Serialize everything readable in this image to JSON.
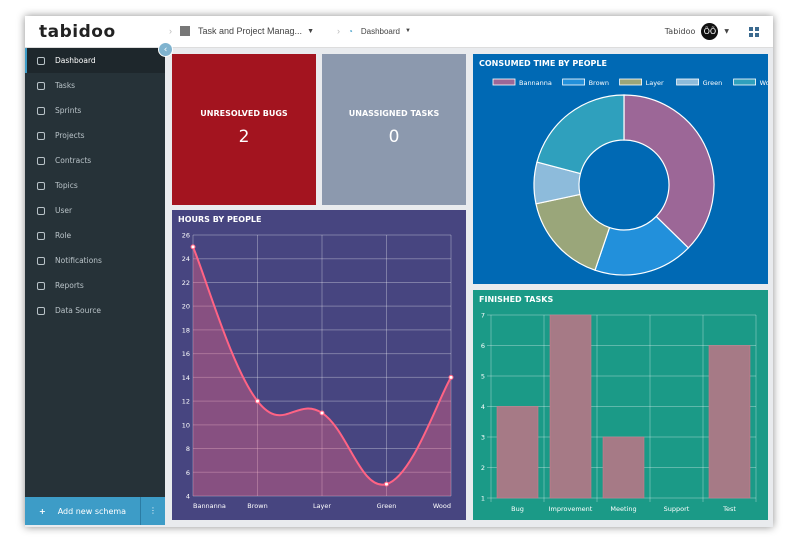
{
  "header": {
    "logo": "tabidoo",
    "app": "Task and Project Manag...",
    "page": "Dashboard",
    "user": "Tabidoo",
    "avatar": "ÕÕ"
  },
  "sidebar": {
    "items": [
      {
        "label": "Dashboard",
        "icon": "gauge-icon",
        "active": true
      },
      {
        "label": "Tasks",
        "icon": "file-icon"
      },
      {
        "label": "Sprints",
        "icon": "sprint-icon"
      },
      {
        "label": "Projects",
        "icon": "projects-icon"
      },
      {
        "label": "Contracts",
        "icon": "table-icon"
      },
      {
        "label": "Topics",
        "icon": "list-icon"
      },
      {
        "label": "User",
        "icon": "user-icon"
      },
      {
        "label": "Role",
        "icon": "users-icon"
      },
      {
        "label": "Notifications",
        "icon": "eye-icon"
      },
      {
        "label": "Reports",
        "icon": "report-icon"
      },
      {
        "label": "Data Source",
        "icon": "database-icon"
      }
    ],
    "add_label": "Add new schema",
    "add_icon": "+",
    "more_icon": "⋮"
  },
  "cards": {
    "bugs": {
      "label": "UNRESOLVED BUGS",
      "value": "2",
      "color": "#a3141f"
    },
    "unassigned": {
      "label": "UNASSIGNED TASKS",
      "value": "0",
      "color": "#8c99ae"
    }
  },
  "chart_data": [
    {
      "type": "area",
      "title": "HOURS BY PEOPLE",
      "categories": [
        "Bannanna",
        "Brown",
        "Layer",
        "Green",
        "Wood"
      ],
      "values": [
        25,
        12,
        11,
        5,
        14
      ],
      "ylim": [
        4,
        26
      ],
      "ystep": 2,
      "grid": true,
      "bg": "#474580",
      "line_color": "#ff6384"
    },
    {
      "type": "pie",
      "title": "CONSUMED TIME BY PEOPLE",
      "categories": [
        "Bannanna",
        "Brown",
        "Layer",
        "Green",
        "Wood"
      ],
      "values": [
        25,
        12,
        11,
        5,
        14
      ],
      "colors": [
        "#9c6797",
        "#2290db",
        "#9aa67a",
        "#8dbbdb",
        "#2fa0bd"
      ],
      "legend": "top",
      "donut": true,
      "bg": "#0069b4"
    },
    {
      "type": "bar",
      "title": "FINISHED TASKS",
      "categories": [
        "Bug",
        "Improvement",
        "Meeting",
        "Support",
        "Test"
      ],
      "values": [
        4,
        7,
        3,
        1,
        6
      ],
      "ylim": [
        1,
        7
      ],
      "ystep": 1,
      "grid": true,
      "bg": "#1b9a87",
      "bar_color": "#a67a86"
    }
  ]
}
